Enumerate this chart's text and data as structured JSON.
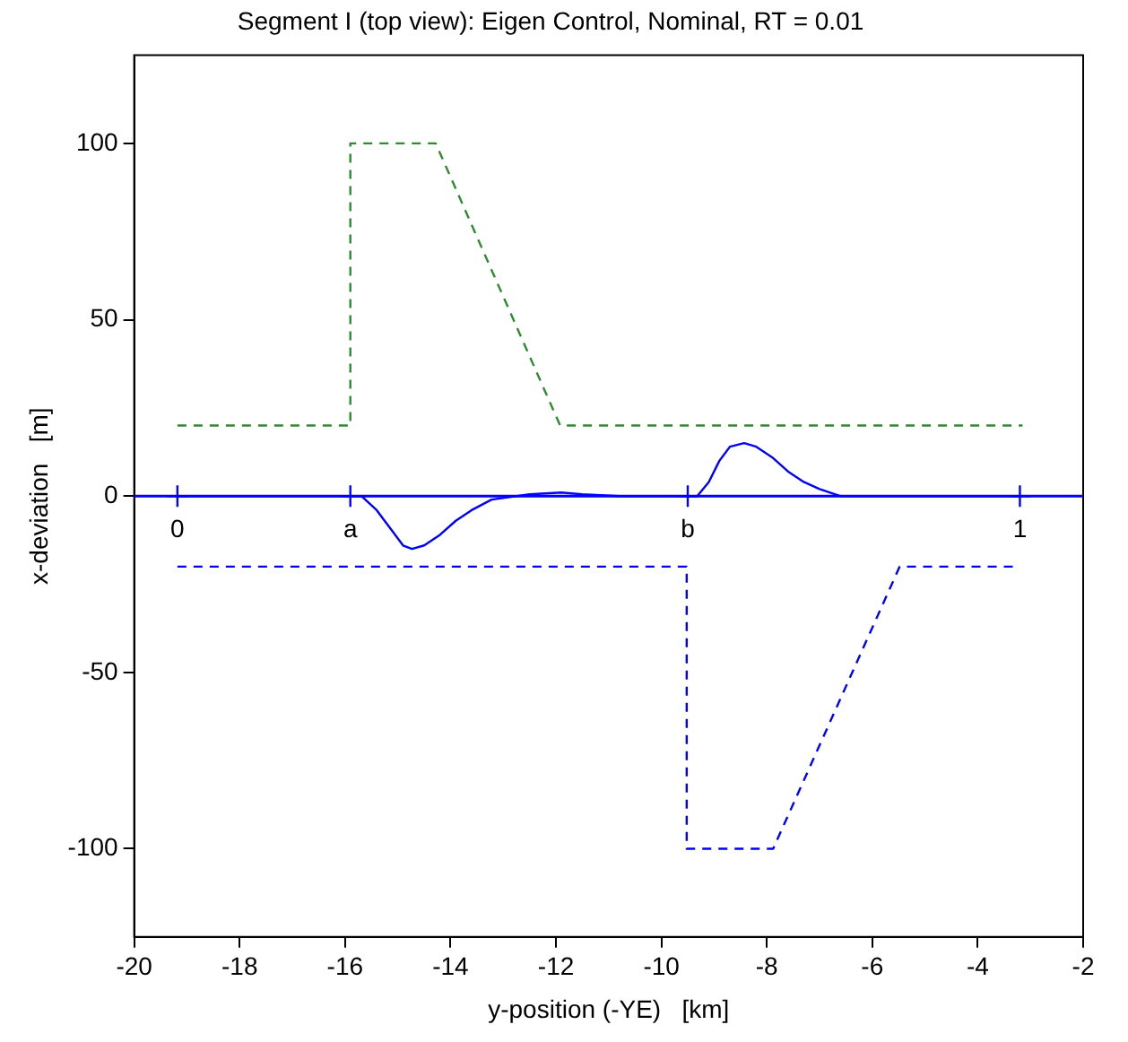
{
  "chart_data": {
    "type": "line",
    "title": "Segment I (top view): Eigen Control, Nominal, RT = 0.01",
    "xlabel": "y-position (-YE)   [km]",
    "ylabel": "x-deviation   [m]",
    "xlim": [
      -20,
      -2
    ],
    "xticks": [
      -20,
      -18,
      -16,
      -14,
      -12,
      -10,
      -8,
      -6,
      -4,
      -2
    ],
    "ylim": [
      -125,
      125
    ],
    "yticks": [
      -100,
      -50,
      0,
      50,
      100
    ],
    "grid": false,
    "legend": false,
    "marker": "none",
    "ref_lines": [
      {
        "axis": "y",
        "value": 0,
        "color": "#0000ff",
        "line_style": "solid"
      }
    ],
    "series": [
      {
        "color": "#2e8b2e",
        "line_style": "dashed",
        "x": [
          -19.18,
          -15.9,
          -15.9,
          -14.28,
          -11.92,
          -3.15
        ],
        "values": [
          20,
          20,
          100,
          100,
          20,
          20
        ]
      },
      {
        "color": "#0000ff",
        "line_style": "dashed",
        "x": [
          -19.18,
          -9.52,
          -9.52,
          -7.88,
          -5.48,
          -3.29
        ],
        "values": [
          -20,
          -20,
          -100,
          -100,
          -20,
          -20
        ]
      },
      {
        "color": "#0000ff",
        "line_style": "solid",
        "x": [
          -19.18,
          -15.9,
          -15.69,
          -15.4,
          -15.1,
          -14.9,
          -14.73,
          -14.5,
          -14.2,
          -13.9,
          -13.6,
          -13.22,
          -12.5,
          -11.9,
          -11.5,
          -10.8,
          -9.5,
          -9.32,
          -9.1,
          -8.9,
          -8.7,
          -8.43,
          -8.2,
          -7.9,
          -7.6,
          -7.3,
          -7.0,
          -6.61,
          -3.2
        ],
        "values": [
          0,
          0,
          0,
          -4,
          -10,
          -14,
          -15,
          -14,
          -11,
          -7,
          -4,
          -1,
          0.5,
          1,
          0.5,
          0,
          0,
          0,
          4,
          10,
          14,
          15,
          14,
          11,
          7,
          4,
          2,
          0,
          0
        ]
      },
      {
        "type": "scatter",
        "color": "#0000ff",
        "marker": "cross",
        "x": [
          -19.18,
          -15.9,
          -9.5,
          -3.2
        ],
        "values": [
          0,
          0,
          0,
          0
        ]
      }
    ],
    "annotations": [
      {
        "text": "0",
        "x": -19.18,
        "y": 0
      },
      {
        "text": "a",
        "x": -15.9,
        "y": 0
      },
      {
        "text": "b",
        "x": -9.5,
        "y": 0
      },
      {
        "text": "1",
        "x": -3.2,
        "y": 0
      }
    ]
  }
}
